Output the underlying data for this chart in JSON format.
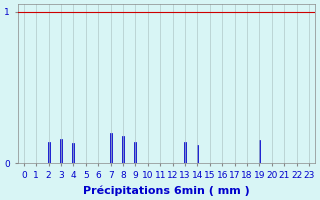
{
  "title": "",
  "xlabel": "Précipitations 6min ( mm )",
  "ylabel": "",
  "xlim": [
    -0.5,
    23.5
  ],
  "ylim": [
    0,
    1.05
  ],
  "yticks": [
    0,
    1
  ],
  "xticks": [
    0,
    1,
    2,
    3,
    4,
    5,
    6,
    7,
    8,
    9,
    10,
    11,
    12,
    13,
    14,
    15,
    16,
    17,
    18,
    19,
    20,
    21,
    22,
    23
  ],
  "background_color": "#d8f5f5",
  "bar_color": "#0000cc",
  "grid_color": "#b0c8c8",
  "bar_edge_color": "#0000cc",
  "values": {
    "0": 0,
    "1": 0,
    "2": 0.14,
    "3": 0.16,
    "4": 0.13,
    "5": 0,
    "6": 0,
    "7": 0.2,
    "8": 0.18,
    "9": 0.14,
    "10": 0,
    "11": 0,
    "12": 0,
    "13": 0.14,
    "14": 0.12,
    "15": 0,
    "16": 0,
    "17": 0,
    "18": 0,
    "19": 0.15,
    "20": 0,
    "21": 0,
    "22": 0,
    "23": 0
  },
  "bar_width": 0.15,
  "hline_y": 1.0,
  "hline_color": "#cc0000",
  "hline_lw": 0.8,
  "axis_label_fontsize": 8,
  "tick_fontsize": 6.5
}
